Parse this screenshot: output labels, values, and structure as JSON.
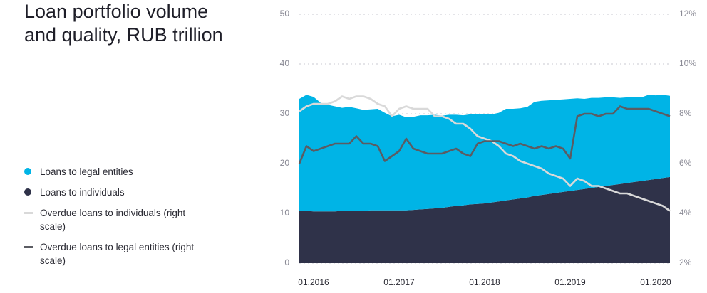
{
  "chart_data": {
    "type": "area",
    "title": "Loan portfolio volume and quality, RUB trillion",
    "categories": [
      null,
      null,
      "01.2016",
      null,
      null,
      null,
      null,
      null,
      null,
      null,
      null,
      null,
      null,
      null,
      "01.2017",
      null,
      null,
      null,
      null,
      null,
      null,
      null,
      null,
      null,
      null,
      null,
      "01.2018",
      null,
      null,
      null,
      null,
      null,
      null,
      null,
      null,
      null,
      null,
      null,
      "01.2019",
      null,
      null,
      null,
      null,
      null,
      null,
      null,
      null,
      null,
      null,
      null,
      "01.2020",
      null,
      null
    ],
    "ylim": [
      0,
      50
    ],
    "yticks": [
      0,
      10,
      20,
      30,
      40,
      50
    ],
    "y2lim": [
      2,
      12
    ],
    "y2ticks": [
      {
        "value": 2,
        "label": "2%"
      },
      {
        "value": 4,
        "label": "4%"
      },
      {
        "value": 6,
        "label": "6%"
      },
      {
        "value": 8,
        "label": "8%"
      },
      {
        "value": 10,
        "label": "10%"
      },
      {
        "value": 12,
        "label": "12%"
      }
    ],
    "grid": true,
    "series": [
      {
        "name": "Loans to legal entities",
        "type": "area",
        "color": "#00b4e6",
        "values": [
          22.5,
          23.3,
          23.0,
          21.8,
          21.4,
          21.1,
          20.7,
          20.9,
          20.6,
          20.3,
          20.3,
          20.4,
          19.6,
          18.9,
          19.2,
          18.7,
          18.7,
          18.9,
          18.8,
          18.8,
          18.5,
          18.5,
          18.3,
          18.1,
          18.1,
          18.0,
          18.0,
          17.7,
          17.8,
          18.4,
          18.2,
          18.1,
          18.2,
          18.9,
          18.9,
          18.8,
          18.7,
          18.6,
          18.5,
          18.4,
          18.1,
          18.1,
          17.9,
          17.8,
          17.6,
          17.3,
          17.2,
          17.1,
          16.8,
          17.1,
          16.8,
          16.7,
          16.3
        ]
      },
      {
        "name": "Loans to individuals",
        "type": "area",
        "color": "#2f3249",
        "values": [
          10.5,
          10.5,
          10.4,
          10.4,
          10.4,
          10.4,
          10.5,
          10.5,
          10.5,
          10.5,
          10.6,
          10.6,
          10.6,
          10.6,
          10.6,
          10.6,
          10.7,
          10.8,
          10.9,
          11.0,
          11.1,
          11.3,
          11.5,
          11.6,
          11.8,
          11.9,
          12.0,
          12.2,
          12.4,
          12.6,
          12.8,
          13.0,
          13.2,
          13.5,
          13.7,
          13.9,
          14.1,
          14.3,
          14.5,
          14.7,
          14.9,
          15.1,
          15.3,
          15.5,
          15.7,
          15.9,
          16.1,
          16.3,
          16.5,
          16.7,
          16.9,
          17.1,
          17.3
        ]
      },
      {
        "name": "Overdue loans to individuals (right scale)",
        "type": "line",
        "axis": "y2",
        "color": "#d9d9d9",
        "values": [
          8.1,
          8.3,
          8.4,
          8.4,
          8.4,
          8.5,
          8.7,
          8.6,
          8.7,
          8.7,
          8.6,
          8.4,
          8.3,
          7.9,
          8.2,
          8.3,
          8.2,
          8.2,
          8.2,
          7.9,
          7.9,
          7.8,
          7.6,
          7.6,
          7.4,
          7.1,
          7.0,
          6.9,
          6.7,
          6.4,
          6.3,
          6.1,
          6.0,
          5.9,
          5.8,
          5.6,
          5.5,
          5.4,
          5.1,
          5.4,
          5.3,
          5.1,
          5.1,
          5.0,
          4.9,
          4.8,
          4.8,
          4.7,
          4.6,
          4.5,
          4.4,
          4.3,
          4.1
        ]
      },
      {
        "name": "Overdue loans to legal entities (right scale)",
        "type": "line",
        "axis": "y2",
        "color": "#5b5c63",
        "values": [
          6.0,
          6.7,
          6.5,
          6.6,
          6.7,
          6.8,
          6.8,
          6.8,
          7.1,
          6.8,
          6.8,
          6.7,
          6.1,
          6.3,
          6.5,
          7.0,
          6.6,
          6.5,
          6.4,
          6.4,
          6.4,
          6.5,
          6.6,
          6.4,
          6.3,
          6.8,
          6.9,
          6.9,
          6.9,
          6.8,
          6.7,
          6.8,
          6.7,
          6.6,
          6.7,
          6.6,
          6.7,
          6.6,
          6.2,
          7.9,
          8.0,
          8.0,
          7.9,
          8.0,
          8.0,
          8.3,
          8.2,
          8.2,
          8.2,
          8.2,
          8.1,
          8.0,
          7.9
        ]
      }
    ]
  }
}
